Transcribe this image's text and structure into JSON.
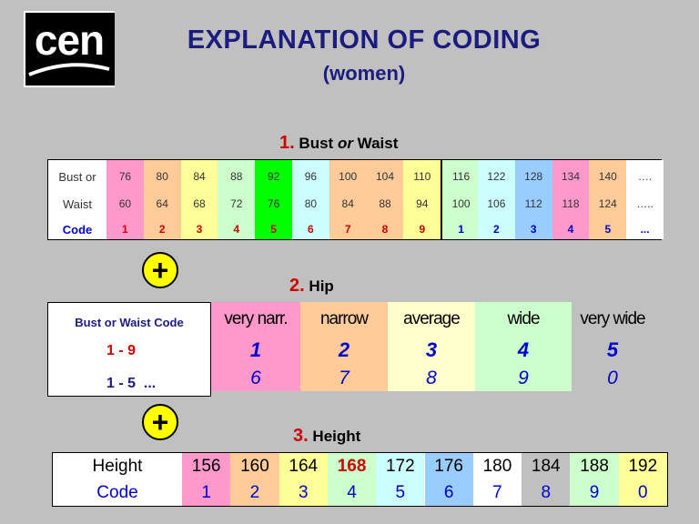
{
  "logo": {
    "text": "cen"
  },
  "title": "EXPLANATION OF CODING",
  "subtitle": "(women)",
  "section1": {
    "num": "1.",
    "text_a": "Bust",
    "text_or": "or",
    "text_b": "Waist"
  },
  "section2": {
    "num": "2.",
    "text": "Hip"
  },
  "section3": {
    "num": "3.",
    "text": "Height"
  },
  "colors": {
    "title": "#1c1c80",
    "accent_red": "#cc0000",
    "code_blue": "#0000cc",
    "plus_yellow": "#ffff00"
  },
  "bust_table": {
    "row_labels": [
      "Bust or",
      "Waist",
      "Code"
    ],
    "columns": [
      {
        "bust": "76",
        "waist": "60",
        "code": "1",
        "bg": "#ff99cc",
        "red": true
      },
      {
        "bust": "80",
        "waist": "64",
        "code": "2",
        "bg": "#ffcc99",
        "red": true
      },
      {
        "bust": "84",
        "waist": "68",
        "code": "3",
        "bg": "#ffff99",
        "red": true
      },
      {
        "bust": "88",
        "waist": "72",
        "code": "4",
        "bg": "#ccffcc",
        "red": true
      },
      {
        "bust": "92",
        "waist": "76",
        "code": "5",
        "bg": "#00ff00",
        "red": true
      },
      {
        "bust": "96",
        "waist": "80",
        "code": "6",
        "bg": "#ccffff",
        "red": true
      },
      {
        "bust": "100",
        "waist": "84",
        "code": "7",
        "bg": "#ffcc99",
        "red": true
      },
      {
        "bust": "104",
        "waist": "88",
        "code": "8",
        "bg": "#ffcc99",
        "red": true
      },
      {
        "bust": "110",
        "waist": "94",
        "code": "9",
        "bg": "#ffff99",
        "red": true
      },
      {
        "bust": "116",
        "waist": "100",
        "code": "1",
        "bg": "#ccffcc",
        "red": false
      },
      {
        "bust": "122",
        "waist": "106",
        "code": "2",
        "bg": "#ccffff",
        "red": false
      },
      {
        "bust": "128",
        "waist": "112",
        "code": "3",
        "bg": "#99ccff",
        "red": false
      },
      {
        "bust": "134",
        "waist": "118",
        "code": "4",
        "bg": "#ff99cc",
        "red": false
      },
      {
        "bust": "140",
        "waist": "124",
        "code": "5",
        "bg": "#ffcc99",
        "red": false
      },
      {
        "bust": "….",
        "waist": "…..",
        "code": "...",
        "bg": "#ffffff",
        "red": false
      }
    ]
  },
  "hip_code_box": {
    "title": "Bust or Waist Code",
    "range1": "1 - 9",
    "range2": "1 - 5  ..."
  },
  "hip_table": [
    {
      "label": "very narr.",
      "code1": "1",
      "code2": "6",
      "bg": "#ff99cc"
    },
    {
      "label": "narrow",
      "code1": "2",
      "code2": "7",
      "bg": "#ffcc99"
    },
    {
      "label": "average",
      "code1": "3",
      "code2": "8",
      "bg": "#ffffcc"
    },
    {
      "label": "wide",
      "code1": "4",
      "code2": "9",
      "bg": "#ccffcc"
    },
    {
      "label": "very wide",
      "code1": "5",
      "code2": "0",
      "bg": "#c0c0c0"
    }
  ],
  "height_table": {
    "row_labels": [
      "Height",
      "Code"
    ],
    "columns": [
      {
        "height": "156",
        "code": "1",
        "bg": "#ff99cc",
        "red": false
      },
      {
        "height": "160",
        "code": "2",
        "bg": "#ffcc99",
        "red": false
      },
      {
        "height": "164",
        "code": "3",
        "bg": "#ffff99",
        "red": false
      },
      {
        "height": "168",
        "code": "4",
        "bg": "#ccffcc",
        "red": true
      },
      {
        "height": "172",
        "code": "5",
        "bg": "#ccffff",
        "red": false
      },
      {
        "height": "176",
        "code": "6",
        "bg": "#99ccff",
        "red": false
      },
      {
        "height": "180",
        "code": "7",
        "bg": "#ffffff",
        "red": false
      },
      {
        "height": "184",
        "code": "8",
        "bg": "#c0c0c0",
        "red": false
      },
      {
        "height": "188",
        "code": "9",
        "bg": "#ccffcc",
        "red": false
      },
      {
        "height": "192",
        "code": "0",
        "bg": "#ffff99",
        "red": false
      }
    ]
  }
}
